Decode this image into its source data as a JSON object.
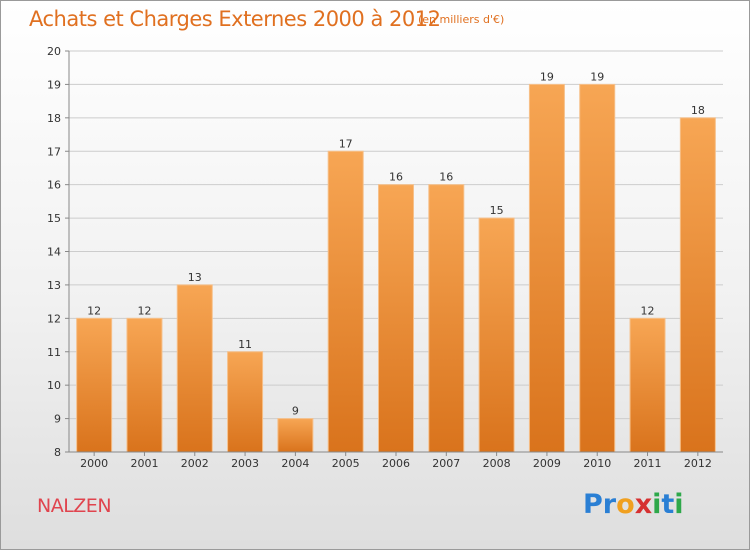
{
  "title": "Achats et Charges Externes 2000 à 2012",
  "subtitle": "(en milliers d'€)",
  "commune": "NALZEN",
  "logo": {
    "letters": [
      "P",
      "r",
      "o",
      "x",
      "i",
      "t",
      "i"
    ],
    "colors": [
      "#2a7fd4",
      "#2a7fd4",
      "#f0a020",
      "#d63030",
      "#2ea84a",
      "#2a7fd4",
      "#2ea84a"
    ]
  },
  "colors": {
    "bar_top": "#f7a654",
    "bar_bottom": "#d9731c",
    "bar_stroke": "#f6c08a",
    "grid": "#cccccc",
    "axis": "#888888"
  },
  "chart_data": {
    "type": "bar",
    "title": "Achats et Charges Externes 2000 à 2012",
    "subtitle": "(en milliers d'€)",
    "categories": [
      "2000",
      "2001",
      "2002",
      "2003",
      "2004",
      "2005",
      "2006",
      "2007",
      "2008",
      "2009",
      "2010",
      "2011",
      "2012"
    ],
    "values": [
      12,
      12,
      13,
      11,
      9,
      17,
      16,
      16,
      15,
      19,
      19,
      12,
      18
    ],
    "ylim": [
      8,
      20
    ],
    "yticks": [
      8,
      9,
      10,
      11,
      12,
      13,
      14,
      15,
      16,
      17,
      18,
      19,
      20
    ],
    "grid": true,
    "legend": "none"
  }
}
